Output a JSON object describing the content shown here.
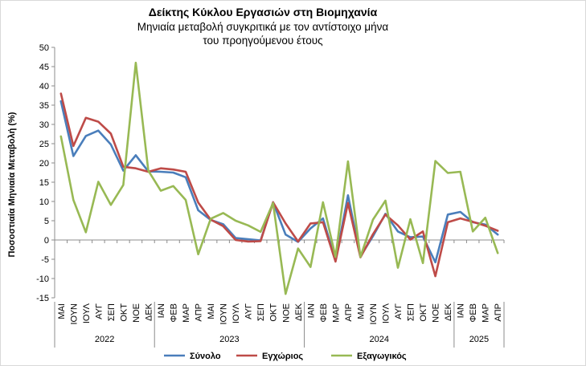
{
  "chart_data": {
    "type": "line",
    "title": "Δείκτης Κύκλου Εργασιών στη Βιομηχανία",
    "subtitle": [
      "Μηνιαία μεταβολή συγκριτικά με τον αντίστοιχο μήνα",
      "του προηγούμενου έτους"
    ],
    "ylabel": "Ποσοστιαία Μηνιαία Μεταβολή (%)",
    "xlabel": "",
    "ylim": [
      -15,
      50
    ],
    "yticks": [
      -15,
      -10,
      -5,
      0,
      5,
      10,
      15,
      20,
      25,
      30,
      35,
      40,
      45,
      50
    ],
    "categories": [
      "ΜΑΙ",
      "ΙΟΥΝ",
      "ΙΟΥΛ",
      "ΑΥΓ",
      "ΣΕΠ",
      "ΟΚΤ",
      "ΝΟΕ",
      "ΔΕΚ",
      "ΙΑΝ",
      "ΦΕΒ",
      "ΜΑΡ",
      "ΑΠΡ",
      "ΜΑΙ",
      "ΙΟΥΝ",
      "ΙΟΥΛ",
      "ΑΥΓ",
      "ΣΕΠ",
      "ΟΚΤ",
      "ΝΟΕ",
      "ΔΕΚ",
      "ΙΑΝ",
      "ΦΕΒ",
      "ΜΑΡ",
      "ΑΠΡ",
      "ΜΑΙ",
      "ΙΟΥΝ",
      "ΙΟΥΛ",
      "ΑΥΓ",
      "ΣΕΠ",
      "ΟΚΤ",
      "ΝΟΕ",
      "ΔΕΚ",
      "ΙΑΝ",
      "ΦΕΒ",
      "ΜΑΡ",
      "ΑΠΡ"
    ],
    "year_groups": [
      {
        "label": "2022",
        "count": 8
      },
      {
        "label": "2023",
        "count": 12
      },
      {
        "label": "2024",
        "count": 12
      },
      {
        "label": "2025",
        "count": 4
      }
    ],
    "series": [
      {
        "name": "Σύνολο",
        "color": "#4a7ebb",
        "values": [
          36.0,
          21.8,
          27.0,
          28.4,
          24.8,
          18.0,
          22.0,
          17.8,
          17.7,
          17.5,
          16.3,
          7.7,
          5.2,
          4.1,
          0.5,
          0.2,
          -0.1,
          9.8,
          1.4,
          -0.5,
          3.0,
          5.6,
          -5.4,
          11.6,
          -4.3,
          1.0,
          6.8,
          2.2,
          0.7,
          0.9,
          -5.8,
          6.6,
          7.3,
          4.6,
          4.0,
          1.4
        ]
      },
      {
        "name": "Εγχώριος",
        "color": "#be4b48",
        "values": [
          38.0,
          24.4,
          31.7,
          30.7,
          27.6,
          19.0,
          18.6,
          17.7,
          18.6,
          18.3,
          17.7,
          9.7,
          5.3,
          3.6,
          0.0,
          -0.4,
          -0.3,
          9.8,
          4.3,
          -0.4,
          4.3,
          4.6,
          -5.6,
          9.6,
          -4.5,
          1.5,
          6.6,
          3.8,
          0.1,
          2.2,
          -9.4,
          4.6,
          5.6,
          4.7,
          3.7,
          2.4
        ]
      },
      {
        "name": "Εξαγωγικός",
        "color": "#98b954",
        "values": [
          26.9,
          10.4,
          2.0,
          15.1,
          9.1,
          14.3,
          46.0,
          18.0,
          12.8,
          14.0,
          10.4,
          -3.7,
          5.5,
          7.0,
          5.0,
          3.8,
          2.1,
          9.6,
          -14.0,
          -2.2,
          -7.0,
          9.8,
          -4.4,
          20.4,
          -4.4,
          5.3,
          10.2,
          -7.2,
          5.4,
          -6.0,
          20.5,
          17.4,
          17.7,
          2.2,
          5.8,
          -3.4
        ]
      }
    ],
    "grid": false,
    "legend_position": "bottom"
  }
}
